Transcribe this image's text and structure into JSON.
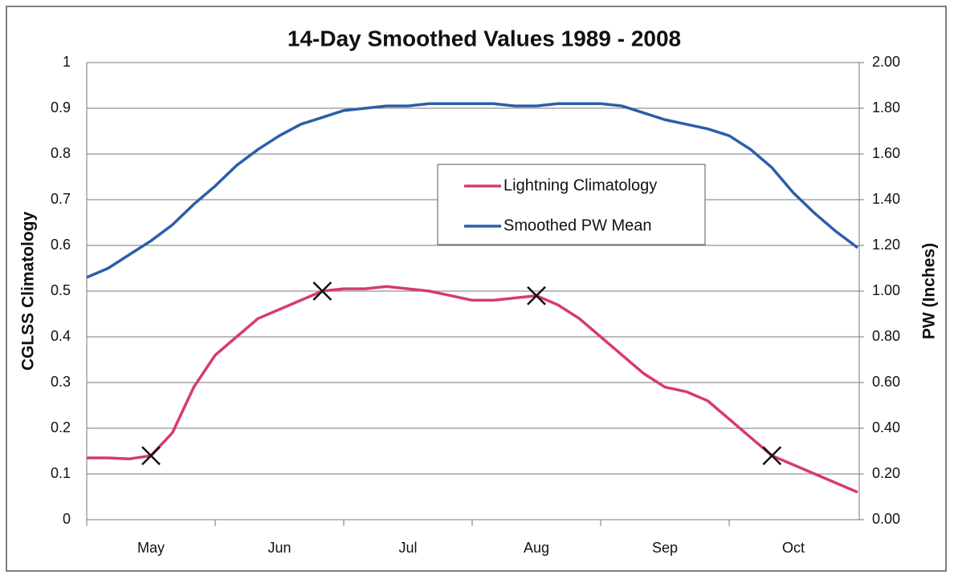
{
  "chart_data": {
    "type": "line",
    "title": "14-Day Smoothed Values 1989 - 2008",
    "y_label": "CGLSS Climatology",
    "y2_label": "PW (Inches)",
    "categories": [
      null,
      null,
      null,
      "May",
      null,
      null,
      null,
      null,
      null,
      "Jun",
      null,
      null,
      null,
      null,
      null,
      "Jul",
      null,
      null,
      null,
      null,
      null,
      "Aug",
      null,
      null,
      null,
      null,
      null,
      "Sep",
      null,
      null,
      null,
      null,
      null,
      "Oct",
      null,
      null,
      null
    ],
    "ylim": [
      0,
      1
    ],
    "yticks": [
      0,
      0.1,
      0.2,
      0.3,
      0.4,
      0.5,
      0.6,
      0.7,
      0.8,
      0.9,
      1
    ],
    "y2lim": [
      0,
      2
    ],
    "y2ticks": [
      {
        "value": 0,
        "label": "0.00"
      },
      {
        "value": 0.2,
        "label": "0.20"
      },
      {
        "value": 0.4,
        "label": "0.40"
      },
      {
        "value": 0.6,
        "label": "0.60"
      },
      {
        "value": 0.8,
        "label": "0.80"
      },
      {
        "value": 1,
        "label": "1.00"
      },
      {
        "value": 1.2,
        "label": "1.20"
      },
      {
        "value": 1.4,
        "label": "1.40"
      },
      {
        "value": 1.6,
        "label": "1.60"
      },
      {
        "value": 1.8,
        "label": "1.80"
      },
      {
        "value": 2,
        "label": "2.00"
      }
    ],
    "grid": true,
    "series": [
      {
        "name": "Lightning Climatology",
        "color": "#d63a72",
        "marked_points": [
          3,
          11,
          21,
          32
        ],
        "values": [
          0.135,
          0.135,
          0.133,
          0.14,
          0.19,
          0.29,
          0.36,
          0.4,
          0.44,
          0.46,
          0.48,
          0.5,
          0.505,
          0.505,
          0.51,
          0.505,
          0.5,
          0.49,
          0.48,
          0.48,
          0.485,
          0.49,
          0.47,
          0.44,
          0.4,
          0.36,
          0.32,
          0.29,
          0.28,
          0.26,
          0.22,
          0.18,
          0.14,
          0.12,
          0.1,
          0.08,
          0.06
        ]
      },
      {
        "name": "Smoothed PW Mean",
        "color": "#2b5fa8",
        "axis": "y2",
        "values": [
          1.06,
          1.1,
          1.16,
          1.22,
          1.29,
          1.38,
          1.46,
          1.55,
          1.62,
          1.68,
          1.73,
          1.76,
          1.79,
          1.8,
          1.81,
          1.81,
          1.82,
          1.82,
          1.82,
          1.82,
          1.81,
          1.81,
          1.82,
          1.82,
          1.82,
          1.81,
          1.78,
          1.75,
          1.73,
          1.71,
          1.68,
          1.62,
          1.54,
          1.43,
          1.34,
          1.26,
          1.19
        ]
      }
    ]
  }
}
